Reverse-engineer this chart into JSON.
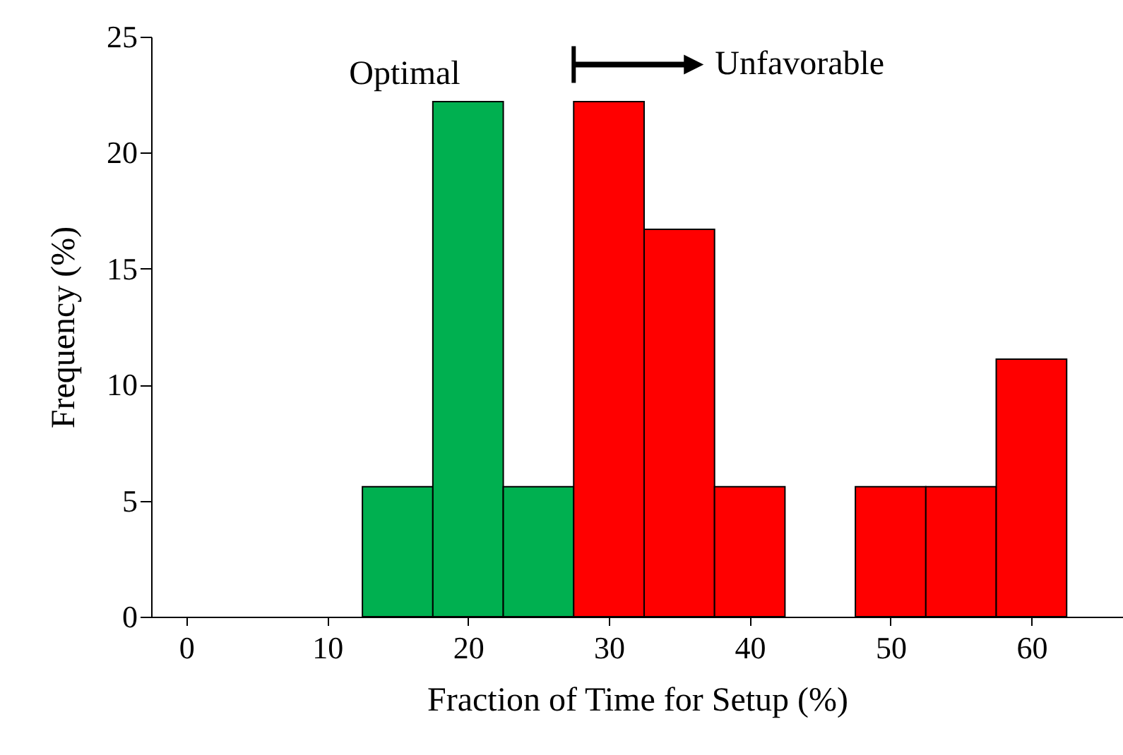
{
  "chart_data": {
    "type": "histogram",
    "xlabel": "Fraction of Time for Setup (%)",
    "ylabel": "Frequency (%)",
    "bins": [
      -2.5,
      2.5,
      7.5,
      12.5,
      17.5,
      22.5,
      27.5,
      32.5,
      37.5,
      42.5,
      47.5,
      52.5,
      57.5,
      62.5
    ],
    "values": [
      0,
      0,
      0,
      5.6,
      22.2,
      5.6,
      22.2,
      16.7,
      5.6,
      0,
      5.6,
      5.6,
      11.1
    ],
    "colors": [
      "#00b050",
      "#00b050",
      "#00b050",
      "#00b050",
      "#00b050",
      "#00b050",
      "#ff0000",
      "#ff0000",
      "#ff0000",
      "#ff0000",
      "#ff0000",
      "#ff0000",
      "#ff0000"
    ],
    "xlim": [
      -2.5,
      66.5
    ],
    "xticks": [
      0,
      10,
      20,
      30,
      40,
      50,
      60
    ],
    "ylim": [
      0,
      25
    ],
    "yticks": [
      0,
      5,
      10,
      15,
      20,
      25
    ],
    "annotations": [
      "Optimal",
      "Unfavorable"
    ],
    "grid": false,
    "legend": false
  }
}
